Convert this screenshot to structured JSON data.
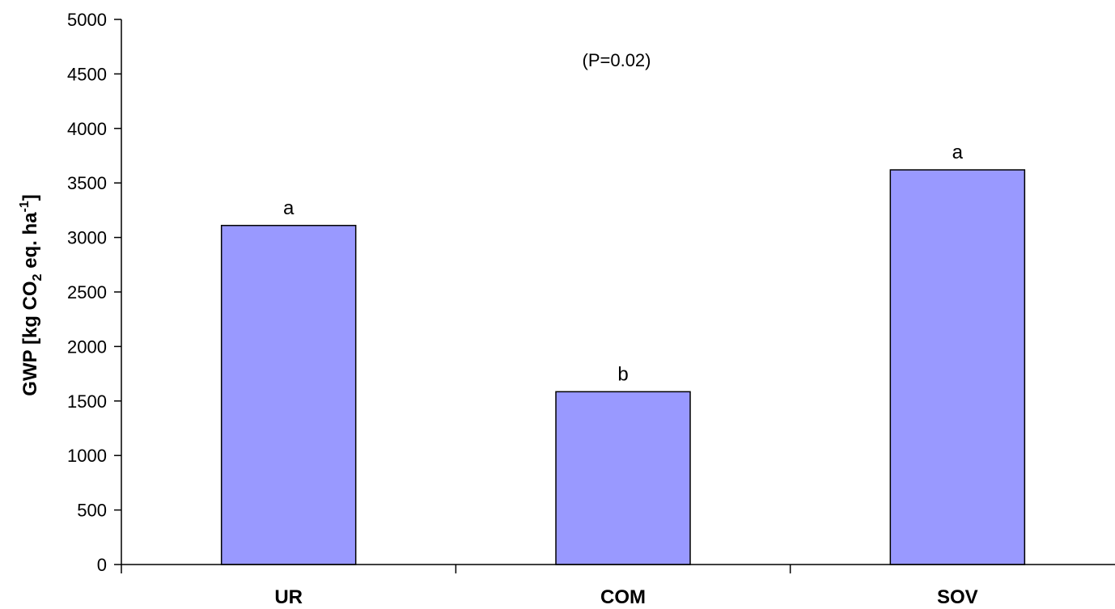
{
  "chart_data": {
    "type": "bar",
    "categories": [
      "UR",
      "COM",
      "SOV"
    ],
    "values": [
      3110,
      1585,
      3620
    ],
    "bar_labels": [
      "a",
      "b",
      "a"
    ],
    "annotation": "(P=0.02)",
    "title": "",
    "xlabel": "",
    "ylabel": {
      "prefix": "GWP [kg CO",
      "sub": "2",
      "middle": " eq. ha",
      "sup": "-1",
      "suffix": "]"
    },
    "ylim": [
      0,
      5000
    ],
    "yticks": [
      "0",
      "500",
      "1000",
      "1500",
      "2000",
      "2500",
      "3000",
      "3500",
      "4000",
      "4500",
      "5000"
    ],
    "grid": false,
    "bar_color": "#9999ff"
  }
}
